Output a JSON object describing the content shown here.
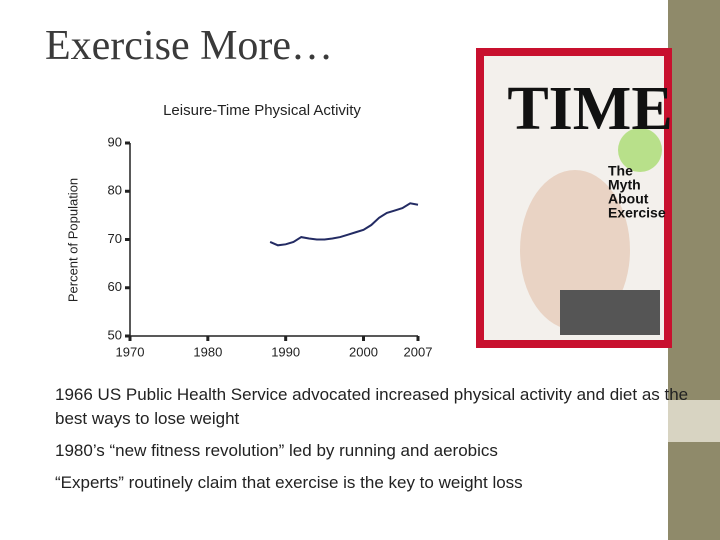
{
  "slide_title": "Exercise More…",
  "chart_data": {
    "type": "line",
    "title": "Leisure-Time Physical Activity",
    "y_label": "Percent of Population",
    "xlim": [
      1970,
      2007
    ],
    "xticks": [
      1970,
      1980,
      1990,
      2000,
      2007
    ],
    "ylim": [
      50,
      90
    ],
    "yticks": [
      50,
      60,
      70,
      80,
      90
    ],
    "grid": false,
    "x": [
      1988,
      1989,
      1990,
      1991,
      1992,
      1993,
      1994,
      1995,
      1996,
      1997,
      1998,
      1999,
      2000,
      2001,
      2002,
      2003,
      2004,
      2005,
      2006,
      2007
    ],
    "series": [
      {
        "name": "Leisure-Time Physical Activity",
        "color": "#232b63",
        "values": [
          69.5,
          68.8,
          69,
          69.5,
          70.5,
          70.2,
          70,
          70,
          70.2,
          70.5,
          71,
          71.5,
          72,
          73,
          74.5,
          75.5,
          76,
          76.5,
          77.5,
          77.2
        ]
      }
    ]
  },
  "cover": {
    "masthead": "TIME",
    "headline": [
      "The",
      "Myth",
      "About",
      "Exercise"
    ]
  },
  "bullets": [
    "1966 US Public Health Service advocated increased physical activity and diet as the best ways to lose weight",
    "1980’s “new fitness revolution” led by running and aerobics",
    "“Experts” routinely claim that exercise is the key to weight loss"
  ]
}
